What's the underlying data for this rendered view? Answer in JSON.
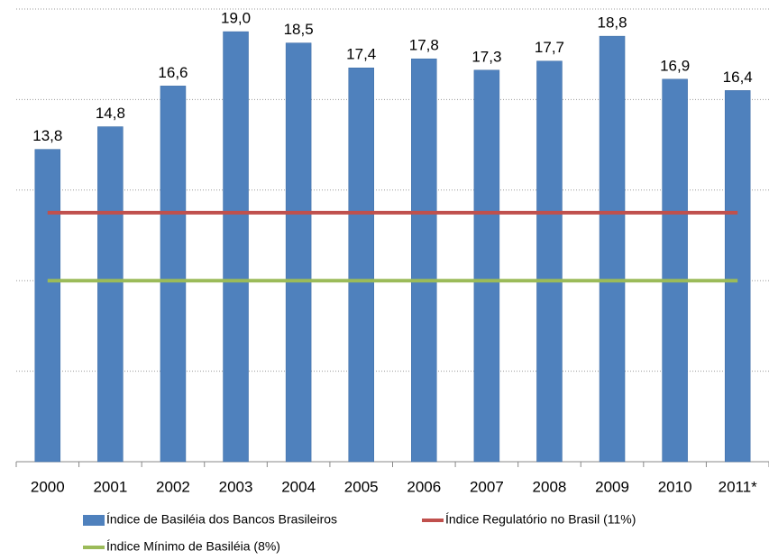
{
  "chart_data": {
    "type": "bar",
    "categories": [
      "2000",
      "2001",
      "2002",
      "2003",
      "2004",
      "2005",
      "2006",
      "2007",
      "2008",
      "2009",
      "2010",
      "2011*"
    ],
    "series": [
      {
        "name": "Índice de Basiléia dos Bancos Brasileiros",
        "type": "bar",
        "color": "#4f81bd",
        "values": [
          13.8,
          14.8,
          16.6,
          19.0,
          18.5,
          17.4,
          17.8,
          17.3,
          17.7,
          18.8,
          16.9,
          16.4
        ],
        "value_labels": [
          "13,8",
          "14,8",
          "16,6",
          "19,0",
          "18,5",
          "17,4",
          "17,8",
          "17,3",
          "17,7",
          "18,8",
          "16,9",
          "16,4"
        ]
      },
      {
        "name": "Índice Regulatório no Brasil (11%)",
        "type": "line",
        "color": "#c0504d",
        "values": [
          11,
          11,
          11,
          11,
          11,
          11,
          11,
          11,
          11,
          11,
          11,
          11
        ]
      },
      {
        "name": "Índice Mínimo de Basiléia (8%)",
        "type": "line",
        "color": "#9bbb59",
        "values": [
          8,
          8,
          8,
          8,
          8,
          8,
          8,
          8,
          8,
          8,
          8,
          8
        ]
      }
    ],
    "ylim": [
      0,
      20
    ],
    "yticks": [
      0,
      4,
      8,
      12,
      16,
      20
    ],
    "grid": true
  }
}
